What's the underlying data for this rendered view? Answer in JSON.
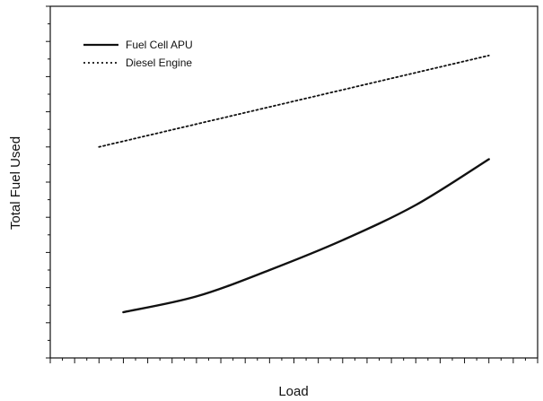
{
  "chart_data": {
    "type": "line",
    "title": "",
    "xlabel": "Load",
    "ylabel": "Total Fuel Used",
    "x_tick_labels": false,
    "y_tick_labels": false,
    "xlim": [
      0,
      20
    ],
    "ylim": [
      0,
      20
    ],
    "grid": false,
    "legend_position": "top-left",
    "series": [
      {
        "name": "Fuel Cell APU",
        "style": "solid",
        "color": "#111111",
        "x": [
          3,
          6,
          9,
          12,
          15,
          18
        ],
        "y": [
          2.6,
          3.5,
          5.0,
          6.7,
          8.7,
          11.3
        ]
      },
      {
        "name": "Diesel Engine",
        "style": "dotted",
        "color": "#111111",
        "x": [
          2,
          18
        ],
        "y": [
          12.0,
          17.2
        ]
      }
    ]
  }
}
